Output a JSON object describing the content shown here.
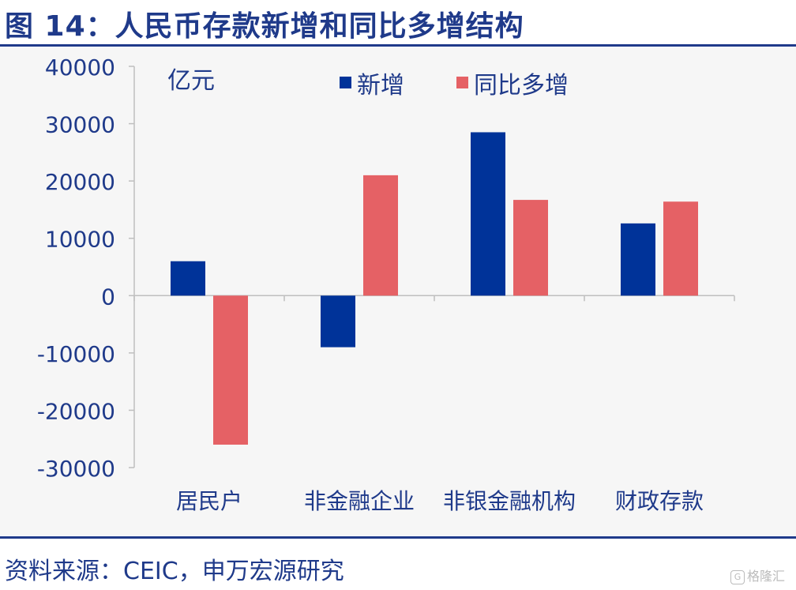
{
  "header": {
    "title": "图 14：人民币存款新增和同比多增结构"
  },
  "chart_data": {
    "type": "bar",
    "unit_label": "亿元",
    "categories": [
      "居民户",
      "非金融企业",
      "非银金融机构",
      "财政存款"
    ],
    "series": [
      {
        "name": "新增",
        "color": "#003399",
        "values": [
          6000,
          -9000,
          28500,
          12600
        ]
      },
      {
        "name": "同比多增",
        "color": "#e56165",
        "values": [
          -26000,
          21000,
          16700,
          16400
        ]
      }
    ],
    "ylim": [
      -30000,
      40000
    ],
    "yticks": [
      40000,
      30000,
      20000,
      10000,
      0,
      -10000,
      -20000,
      -30000
    ],
    "ytick_labels": [
      "40000",
      "30000",
      "20000",
      "10000",
      "0",
      "-10000",
      "-20000",
      "-30000"
    ],
    "legend_position": "top-center",
    "grid": false
  },
  "footer": {
    "source": "资料来源：CEIC，申万宏源研究"
  },
  "watermark": {
    "icon_text": "G",
    "text": "格隆汇"
  }
}
